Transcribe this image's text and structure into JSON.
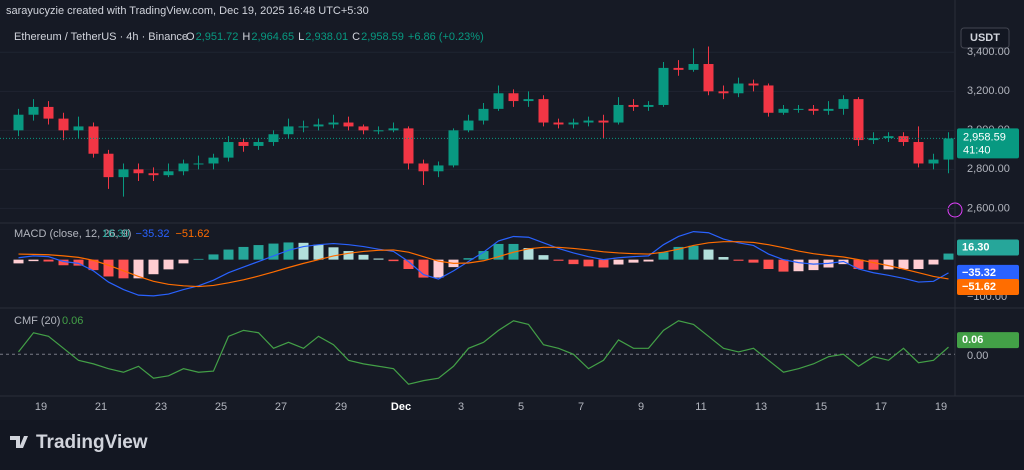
{
  "header": {
    "watermark": "sarayucyzie created with TradingView.com, Dec 19, 2025 16:48 UTC+5:30",
    "symbol": "Ethereum / TetherUS · 4h · Binance",
    "ohlc": [
      {
        "key": "O",
        "value": "2,951.72"
      },
      {
        "key": "H",
        "value": "2,964.65"
      },
      {
        "key": "L",
        "value": "2,938.01"
      },
      {
        "key": "C",
        "value": "2,958.59"
      }
    ],
    "change": "+6.86 (+0.23%)",
    "currency": "USDT"
  },
  "chart_data": [
    {
      "type": "candlestick",
      "up_color": "#089981",
      "down_color": "#f23645",
      "grid": true,
      "categories": [
        null,
        null,
        "19",
        null,
        null,
        null,
        "21",
        null,
        null,
        null,
        "23",
        null,
        null,
        null,
        "25",
        null,
        null,
        null,
        "27",
        null,
        null,
        null,
        "29",
        null,
        null,
        null,
        "Dec",
        null,
        null,
        null,
        "3",
        null,
        null,
        null,
        "5",
        null,
        null,
        null,
        "7",
        null,
        null,
        null,
        "9",
        null,
        null,
        null,
        "11",
        null,
        null,
        null,
        "13",
        null,
        null,
        null,
        "15",
        null,
        null,
        null,
        "17",
        null,
        null,
        null,
        "19"
      ],
      "open": [
        3000,
        3080,
        3120,
        3060,
        3000,
        3020,
        2880,
        2760,
        2800,
        2780,
        2770,
        2790,
        2830,
        2830,
        2860,
        2940,
        2920,
        2940,
        2980,
        3020,
        3020,
        3030,
        3040,
        3020,
        3000,
        3000,
        3010,
        2830,
        2790,
        2820,
        3000,
        3050,
        3110,
        3190,
        3150,
        3160,
        3040,
        3030,
        3040,
        3050,
        3040,
        3130,
        3120,
        3130,
        3320,
        3310,
        3340,
        3200,
        3190,
        3240,
        3230,
        3090,
        3110,
        3110,
        3100,
        3110,
        3160,
        2950,
        2960,
        2970,
        2940,
        2830,
        2850
      ],
      "high": [
        3110,
        3160,
        3150,
        3090,
        3070,
        3040,
        2900,
        2830,
        2830,
        2810,
        2830,
        2850,
        2870,
        2880,
        2970,
        2960,
        2960,
        3000,
        3060,
        3050,
        3060,
        3080,
        3070,
        3030,
        3020,
        3040,
        3020,
        2850,
        2840,
        3010,
        3080,
        3140,
        3230,
        3210,
        3200,
        3180,
        3060,
        3060,
        3070,
        3080,
        3170,
        3160,
        3150,
        3350,
        3360,
        3420,
        3430,
        3230,
        3270,
        3260,
        3240,
        3130,
        3130,
        3130,
        3150,
        3180,
        3170,
        2990,
        2990,
        2990,
        3020,
        2880,
        2990
      ],
      "low": [
        2970,
        3050,
        3030,
        2950,
        2960,
        2860,
        2700,
        2660,
        2740,
        2740,
        2760,
        2770,
        2800,
        2800,
        2840,
        2890,
        2900,
        2920,
        2960,
        2990,
        3000,
        3010,
        3000,
        2980,
        2980,
        2990,
        2800,
        2720,
        2760,
        2810,
        2990,
        3030,
        3100,
        3120,
        3120,
        3020,
        3010,
        3010,
        3020,
        2960,
        3030,
        3100,
        3100,
        3120,
        3280,
        3300,
        3180,
        3160,
        3170,
        3200,
        3070,
        3080,
        3090,
        3080,
        3080,
        3080,
        2920,
        2930,
        2940,
        2920,
        2810,
        2800,
        2780
      ],
      "close": [
        3080,
        3120,
        3060,
        3000,
        3020,
        2880,
        2760,
        2800,
        2780,
        2770,
        2790,
        2830,
        2830,
        2860,
        2940,
        2920,
        2940,
        2980,
        3020,
        3020,
        3030,
        3040,
        3020,
        3000,
        3000,
        3010,
        2830,
        2790,
        2820,
        3000,
        3050,
        3110,
        3190,
        3150,
        3160,
        3040,
        3030,
        3040,
        3050,
        3040,
        3130,
        3120,
        3130,
        3320,
        3310,
        3340,
        3200,
        3190,
        3240,
        3230,
        3090,
        3110,
        3110,
        3100,
        3110,
        3160,
        2950,
        2960,
        2970,
        2940,
        2830,
        2850,
        2958.59
      ],
      "ylim": [
        2530,
        3540
      ],
      "yticks": [
        {
          "value": 2600,
          "label": "2,600.00"
        },
        {
          "value": 2800,
          "label": "2,800.00"
        },
        {
          "value": 3000,
          "label": "3,000.00"
        },
        {
          "value": 3200,
          "label": "3,200.00"
        },
        {
          "value": 3400,
          "label": "3,400.00"
        }
      ],
      "last_price": {
        "value": 2958.59,
        "label": "2,958.59",
        "countdown": "41:40"
      }
    },
    {
      "type": "macd",
      "title": "MACD (close, 12, 26, 9)",
      "ylim": [
        -124,
        90
      ],
      "yticks": [
        {
          "value": -100,
          "label": "−100.00"
        }
      ],
      "histogram": {
        "colors": [
          "#26a69a",
          "#b2dfdb",
          "#ffcdd2",
          "#ff5252"
        ],
        "last_label": "16.30",
        "values": [
          -10,
          -4,
          -5,
          -15,
          -16,
          -28,
          -45,
          -50,
          -50,
          -39,
          -26,
          -10,
          2,
          14,
          27,
          34,
          39,
          43,
          46,
          45,
          40,
          33,
          23,
          13,
          3,
          -4,
          -25,
          -48,
          -48,
          -20,
          4,
          23,
          42,
          42,
          31,
          12,
          -3,
          -12,
          -18,
          -21,
          -13,
          -8,
          -5,
          20,
          34,
          37,
          27,
          7,
          -3,
          -8,
          -25,
          -32,
          -31,
          -28,
          -21,
          -12,
          -25,
          -27,
          -26,
          -25,
          -25,
          -13,
          16.3
        ]
      },
      "series": [
        {
          "color": "#2962ff",
          "last_label": "−35.32",
          "values": [
            5,
            10,
            8,
            -5,
            -10,
            -30,
            -60,
            -80,
            -95,
            -97,
            -92,
            -80,
            -70,
            -55,
            -35,
            -20,
            -5,
            10,
            25,
            35,
            40,
            43,
            40,
            35,
            28,
            22,
            -5,
            -40,
            -52,
            -30,
            -5,
            20,
            50,
            62,
            60,
            45,
            30,
            18,
            8,
            0,
            5,
            8,
            10,
            40,
            62,
            75,
            72,
            55,
            45,
            38,
            15,
            0,
            -8,
            -12,
            -10,
            -5,
            -25,
            -35,
            -42,
            -50,
            -60,
            -58,
            -35.32
          ]
        },
        {
          "color": "#ff6d00",
          "last_label": "−51.62",
          "values": [
            15,
            14,
            13,
            10,
            6,
            -2,
            -15,
            -30,
            -45,
            -58,
            -66,
            -70,
            -72,
            -69,
            -62,
            -54,
            -44,
            -33,
            -21,
            -10,
            0,
            10,
            17,
            22,
            25,
            26,
            20,
            8,
            -4,
            -10,
            -9,
            -3,
            8,
            20,
            29,
            33,
            33,
            30,
            26,
            21,
            18,
            16,
            15,
            20,
            28,
            38,
            45,
            48,
            48,
            46,
            40,
            32,
            23,
            16,
            11,
            7,
            0,
            -8,
            -16,
            -25,
            -35,
            -45,
            -51.62
          ]
        }
      ]
    },
    {
      "type": "line",
      "title": "CMF (20)",
      "ylim": [
        -0.34,
        0.37
      ],
      "yticks": [
        {
          "value": 0,
          "label": "0.00"
        }
      ],
      "color": "#43a047",
      "values": [
        0.02,
        0.18,
        0.15,
        0.05,
        -0.05,
        -0.08,
        -0.12,
        -0.15,
        -0.1,
        -0.2,
        -0.18,
        -0.12,
        -0.15,
        -0.14,
        0.15,
        0.2,
        0.18,
        0.05,
        0.1,
        0.05,
        0.15,
        0.08,
        -0.05,
        -0.08,
        -0.1,
        -0.12,
        -0.25,
        -0.22,
        -0.2,
        -0.1,
        0.05,
        0.1,
        0.2,
        0.28,
        0.25,
        0.08,
        0.05,
        0,
        -0.12,
        -0.05,
        0.12,
        0.05,
        0.05,
        0.2,
        0.28,
        0.25,
        0.15,
        0.05,
        0.02,
        0.05,
        -0.05,
        -0.15,
        -0.12,
        -0.08,
        -0.02,
        0,
        -0.1,
        -0.02,
        -0.05,
        0.05,
        -0.07,
        -0.05,
        0.06
      ]
    }
  ],
  "footer": {
    "logo": "TradingView"
  }
}
